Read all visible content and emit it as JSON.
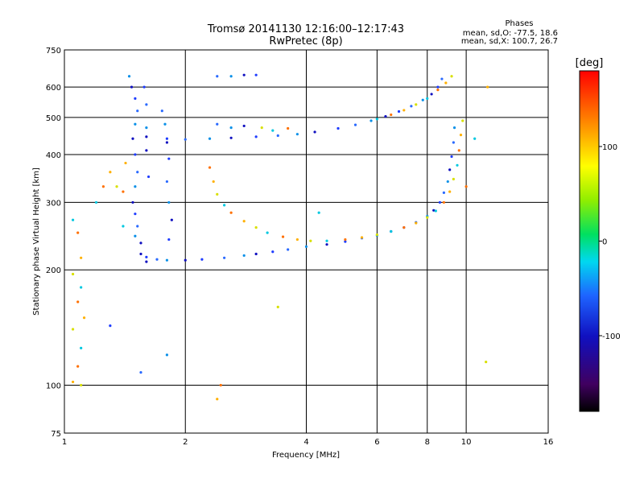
{
  "chart_data": {
    "type": "scatter",
    "title": "Tromsø 20141130 12:16:00–12:17:43",
    "subtitle": "RwPretec (8p)",
    "xlabel": "Frequency [MHz]",
    "ylabel": "Stationary phase Virtual Height [km]",
    "x_scale": "log",
    "y_scale": "log",
    "xlim": [
      1,
      16
    ],
    "ylim": [
      75,
      750
    ],
    "x_ticks": [
      1,
      2,
      4,
      6,
      8,
      10,
      16
    ],
    "x_tick_labels": [
      "1",
      "2",
      "4",
      "6",
      "8",
      "10",
      "16"
    ],
    "y_ticks": [
      75,
      100,
      200,
      300,
      400,
      500,
      600,
      750
    ],
    "y_tick_labels": [
      "75",
      "100",
      "200",
      "300",
      "400",
      "500",
      "600",
      "750"
    ],
    "grid": true,
    "info": {
      "heading": "Phases",
      "line1": "mean, sd,O: -77.5, 18.6",
      "line2": "mean, sd,X: 100.7, 26.7"
    },
    "colorbar": {
      "label": "[deg]",
      "range": [
        -180,
        180
      ],
      "ticks": [
        100,
        0,
        -100
      ],
      "tick_labels": [
        "100",
        "0",
        "-100"
      ]
    },
    "series": [
      {
        "points": [
          [
            1.55,
            220
          ],
          [
            1.6,
            216
          ],
          [
            1.7,
            213
          ],
          [
            1.8,
            212
          ],
          [
            2.0,
            212
          ],
          [
            2.2,
            213
          ],
          [
            2.5,
            215
          ],
          [
            2.8,
            218
          ],
          [
            3.0,
            220
          ],
          [
            3.3,
            223
          ],
          [
            3.6,
            226
          ],
          [
            4.0,
            230
          ],
          [
            4.5,
            233
          ],
          [
            5.0,
            237
          ],
          [
            5.5,
            242
          ],
          [
            6.0,
            246
          ],
          [
            6.5,
            252
          ],
          [
            7.0,
            258
          ],
          [
            7.5,
            266
          ],
          [
            8.0,
            276
          ],
          [
            8.3,
            286
          ],
          [
            8.6,
            300
          ],
          [
            8.8,
            318
          ],
          [
            9.0,
            340
          ],
          [
            9.1,
            365
          ],
          [
            9.2,
            395
          ],
          [
            9.3,
            430
          ],
          [
            9.35,
            470
          ],
          [
            1.6,
            445
          ],
          [
            1.8,
            440
          ],
          [
            2.0,
            438
          ],
          [
            2.3,
            440
          ],
          [
            2.6,
            442
          ],
          [
            3.0,
            445
          ],
          [
            3.4,
            448
          ],
          [
            3.8,
            452
          ],
          [
            4.2,
            458
          ],
          [
            4.8,
            468
          ],
          [
            5.3,
            478
          ],
          [
            5.8,
            490
          ],
          [
            6.3,
            503
          ],
          [
            6.8,
            518
          ],
          [
            7.3,
            535
          ],
          [
            7.8,
            555
          ],
          [
            8.2,
            575
          ],
          [
            8.5,
            600
          ],
          [
            8.7,
            630
          ],
          [
            1.45,
            640
          ],
          [
            1.47,
            600
          ],
          [
            1.5,
            560
          ],
          [
            1.52,
            520
          ],
          [
            1.5,
            480
          ],
          [
            1.48,
            440
          ],
          [
            1.5,
            400
          ],
          [
            1.52,
            360
          ],
          [
            1.5,
            330
          ],
          [
            1.48,
            300
          ],
          [
            1.5,
            280
          ],
          [
            1.52,
            260
          ],
          [
            1.5,
            245
          ],
          [
            1.55,
            235
          ],
          [
            1.58,
            600
          ],
          [
            1.6,
            540
          ],
          [
            1.6,
            470
          ],
          [
            1.6,
            410
          ],
          [
            1.62,
            350
          ],
          [
            1.75,
            520
          ],
          [
            1.78,
            480
          ],
          [
            1.8,
            430
          ],
          [
            1.82,
            390
          ],
          [
            1.8,
            340
          ],
          [
            1.82,
            300
          ],
          [
            1.85,
            270
          ],
          [
            1.82,
            240
          ],
          [
            2.4,
            640
          ],
          [
            2.6,
            640
          ],
          [
            2.8,
            645
          ],
          [
            3.0,
            645
          ],
          [
            2.4,
            480
          ],
          [
            2.6,
            470
          ],
          [
            2.8,
            475
          ],
          [
            1.3,
            143
          ],
          [
            1.55,
            108
          ],
          [
            1.8,
            120
          ],
          [
            1.6,
            210
          ]
        ]
      },
      {
        "points": [
          [
            2.3,
            370
          ],
          [
            2.35,
            340
          ],
          [
            2.4,
            315
          ],
          [
            2.5,
            295
          ],
          [
            2.6,
            282
          ],
          [
            2.8,
            268
          ],
          [
            3.0,
            258
          ],
          [
            3.2,
            250
          ],
          [
            3.5,
            244
          ],
          [
            3.8,
            240
          ],
          [
            4.1,
            238
          ],
          [
            4.5,
            238
          ],
          [
            5.0,
            240
          ],
          [
            5.5,
            243
          ],
          [
            6.0,
            247
          ],
          [
            6.5,
            252
          ],
          [
            7.0,
            258
          ],
          [
            7.5,
            265
          ],
          [
            8.0,
            274
          ],
          [
            8.4,
            285
          ],
          [
            8.8,
            300
          ],
          [
            9.1,
            320
          ],
          [
            9.3,
            345
          ],
          [
            9.5,
            375
          ],
          [
            9.6,
            410
          ],
          [
            9.7,
            450
          ],
          [
            9.8,
            490
          ],
          [
            6.0,
            495
          ],
          [
            6.5,
            508
          ],
          [
            7.0,
            522
          ],
          [
            7.5,
            540
          ],
          [
            8.0,
            560
          ],
          [
            8.5,
            590
          ],
          [
            8.9,
            615
          ],
          [
            9.2,
            640
          ],
          [
            1.05,
            270
          ],
          [
            1.08,
            250
          ],
          [
            1.1,
            215
          ],
          [
            1.05,
            195
          ],
          [
            1.1,
            180
          ],
          [
            1.08,
            165
          ],
          [
            1.12,
            150
          ],
          [
            1.05,
            140
          ],
          [
            1.1,
            125
          ],
          [
            1.08,
            112
          ],
          [
            1.05,
            102
          ],
          [
            1.1,
            100
          ],
          [
            1.2,
            300
          ],
          [
            1.25,
            330
          ],
          [
            1.3,
            360
          ],
          [
            1.35,
            330
          ],
          [
            1.4,
            260
          ],
          [
            1.4,
            320
          ],
          [
            1.42,
            380
          ],
          [
            3.1,
            470
          ],
          [
            3.3,
            462
          ],
          [
            3.6,
            468
          ],
          [
            11.3,
            600
          ],
          [
            11.2,
            115
          ],
          [
            10.5,
            440
          ],
          [
            2.45,
            100
          ],
          [
            2.4,
            92
          ],
          [
            3.4,
            160
          ],
          [
            4.3,
            282
          ],
          [
            10,
            330
          ]
        ]
      }
    ]
  }
}
